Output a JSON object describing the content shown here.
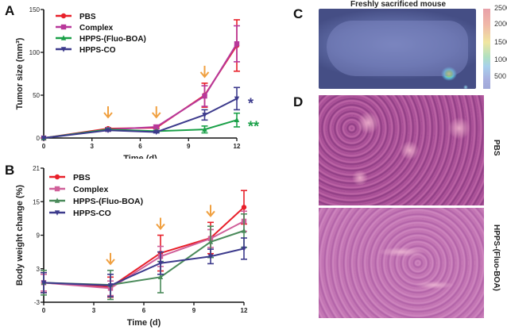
{
  "panels": {
    "A": {
      "letter": "A"
    },
    "B": {
      "letter": "B"
    },
    "C": {
      "letter": "C",
      "title": "Freshly sacrificed mouse",
      "colorbar": {
        "ticks": [
          "2500",
          "2000",
          "1500",
          "1000",
          "500"
        ],
        "colors": [
          "#e8a0a8",
          "#f0e6a0",
          "#a8d0ec",
          "#a0a8d8"
        ]
      }
    },
    "D": {
      "letter": "D",
      "labels": [
        "PBS",
        "HPPS-(Fluo-BOA)"
      ]
    }
  },
  "colors": {
    "PBS": "#e8202a",
    "Complex": "#b8389a",
    "HPPS-(Fluo-BOA)": "#1aa048",
    "HPPS-CO": "#3c3a8c",
    "arrow": "#f0a040",
    "B_Complex": "#d0609a",
    "B_HPPS-(Fluo-BOA)": "#4a8a5a"
  },
  "chart_data": [
    {
      "panel": "A",
      "type": "line",
      "title": "",
      "xlabel": "Time (d)",
      "ylabel": "Tumor size (mm³)",
      "x": [
        0,
        4,
        7,
        10,
        12
      ],
      "xticks": [
        "0",
        "3",
        "6",
        "9",
        "12"
      ],
      "yticks": [
        "0",
        "50",
        "100",
        "150"
      ],
      "xlim": [
        0,
        12
      ],
      "ylim": [
        0,
        150
      ],
      "legend_position": "upper-left",
      "series": [
        {
          "name": "PBS",
          "marker": "circle",
          "values": [
            0,
            11,
            12,
            50,
            108
          ],
          "errors": [
            0,
            1,
            1,
            14,
            30
          ]
        },
        {
          "name": "Complex",
          "marker": "square",
          "values": [
            0,
            10,
            13,
            49,
            110
          ],
          "errors": [
            0,
            1,
            2,
            12,
            21
          ]
        },
        {
          "name": "HPPS-(Fluo-BOA)",
          "marker": "triangle-up",
          "values": [
            0,
            10,
            8,
            10,
            21
          ],
          "errors": [
            0,
            1,
            1,
            4,
            8
          ]
        },
        {
          "name": "HPPS-CO",
          "marker": "triangle-down",
          "values": [
            0,
            9,
            7,
            27,
            46
          ],
          "errors": [
            0,
            1,
            1,
            6,
            13
          ]
        }
      ],
      "arrows_at_x": [
        4,
        7,
        10
      ],
      "annotations": [
        {
          "text": "*",
          "series": "HPPS-CO"
        },
        {
          "text": "**",
          "series": "HPPS-(Fluo-BOA)"
        }
      ]
    },
    {
      "panel": "B",
      "type": "line",
      "title": "",
      "xlabel": "Time (d)",
      "ylabel": "Body weight change (%)",
      "x": [
        0,
        4,
        7,
        10,
        12
      ],
      "xticks": [
        "0",
        "3",
        "6",
        "9",
        "12"
      ],
      "yticks": [
        "-3",
        "3",
        "9",
        "15",
        "21"
      ],
      "xlim": [
        0,
        12
      ],
      "ylim": [
        -3,
        21
      ],
      "legend_position": "upper-left",
      "series": [
        {
          "name": "PBS",
          "marker": "circle",
          "values": [
            0.5,
            -0.3,
            5.8,
            8.5,
            14.0
          ],
          "errors": [
            1.8,
            1.8,
            3.2,
            2.8,
            3.0
          ]
        },
        {
          "name": "Complex",
          "marker": "square",
          "values": [
            0.5,
            -0.5,
            5.2,
            8.4,
            11.5
          ],
          "errors": [
            1.5,
            1.3,
            1.8,
            1.6,
            1.8
          ]
        },
        {
          "name": "HPPS-(Fluo-BOA)",
          "marker": "triangle-up",
          "values": [
            0.5,
            0.1,
            1.5,
            7.8,
            9.8
          ],
          "errors": [
            2.2,
            2.6,
            2.8,
            2.8,
            3.0
          ]
        },
        {
          "name": "HPPS-CO",
          "marker": "triangle-down",
          "values": [
            0.5,
            0.0,
            4.0,
            5.2,
            6.6
          ],
          "errors": [
            1.8,
            2.0,
            2.0,
            1.3,
            1.9
          ]
        }
      ],
      "arrows_at_x": [
        4,
        7,
        10
      ]
    }
  ]
}
